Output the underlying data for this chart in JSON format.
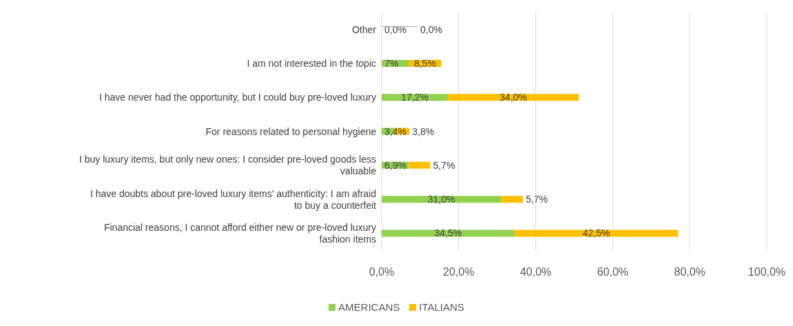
{
  "chart_data": {
    "type": "bar",
    "orientation": "horizontal",
    "stacked": true,
    "categories": [
      "Other",
      "I am not interested in the topic",
      "I have never had the opportunity, but I could buy pre-loved luxury",
      "For reasons related to personal hygiene",
      "I buy luxury items, but only new ones: I consider pre-loved goods less valuable",
      "I have doubts about pre-loved luxury items' authenticity: I am afraid to buy a counterfeit",
      "Financial reasons, I cannot afford either new or pre-loved luxury fashion items"
    ],
    "series": [
      {
        "name": "AMERICANS",
        "color": "#92d050",
        "values": [
          0,
          7,
          17.2,
          3.4,
          6.9,
          31.0,
          34.5
        ],
        "value_labels": [
          "0,0%",
          "7%",
          "17,2%",
          "3,4%",
          "6,9%",
          "31,0%",
          "34,5%"
        ]
      },
      {
        "name": "ITALIANS",
        "color": "#ffc000",
        "values": [
          0,
          8.5,
          34.0,
          3.8,
          5.7,
          5.7,
          42.5
        ],
        "value_labels": [
          "0,0%",
          "8,5%",
          "34,0%",
          "3,8%",
          "5,7%",
          "5,7%",
          "42,5%"
        ]
      }
    ],
    "xlim": [
      0,
      100
    ],
    "xticks": [
      {
        "value": 0,
        "label": "0,0%"
      },
      {
        "value": 20,
        "label": "20,0%"
      },
      {
        "value": 40,
        "label": "40,0%"
      },
      {
        "value": 60,
        "label": "60,0%"
      },
      {
        "value": 80,
        "label": "80,0%"
      },
      {
        "value": 100,
        "label": "100,0%"
      }
    ],
    "grid": "x",
    "legend": "bottom"
  }
}
